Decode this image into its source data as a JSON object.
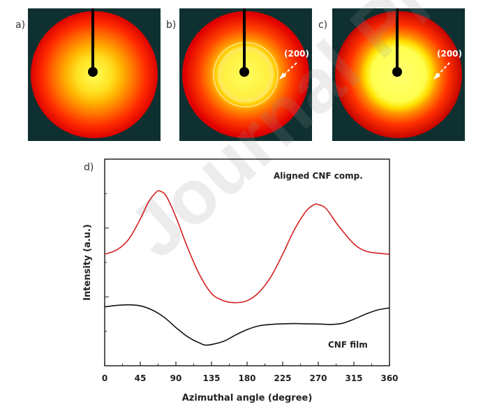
{
  "panels": {
    "a": {
      "label": "a)"
    },
    "b": {
      "label": "b)",
      "annotation": "(200)"
    },
    "c": {
      "label": "c)",
      "annotation": "(200)"
    },
    "d": {
      "label": "d)"
    }
  },
  "watermark": "Journal Pre-proof",
  "colors": {
    "aligned_curve": "#d42020",
    "film_curve": "#111111",
    "pattern_background": "#0f3030"
  },
  "chart_data": {
    "type": "line",
    "xlabel": "Azimuthal angle (degree)",
    "ylabel": "Intensity (a.u.)",
    "xlim": [
      0,
      360
    ],
    "x_ticks": [
      0,
      45,
      90,
      135,
      180,
      225,
      270,
      315,
      360
    ],
    "y_ticks_labeled": false,
    "grid": false,
    "series": [
      {
        "name": "Aligned CNF comp.",
        "color": "#d42020",
        "x": [
          0,
          15,
          30,
          45,
          55,
          65,
          70,
          78,
          90,
          105,
          120,
          135,
          150,
          165,
          180,
          195,
          210,
          225,
          240,
          255,
          265,
          270,
          280,
          295,
          315,
          330,
          345,
          360
        ],
        "y": [
          0.54,
          0.56,
          0.61,
          0.71,
          0.79,
          0.84,
          0.845,
          0.82,
          0.72,
          0.57,
          0.44,
          0.35,
          0.315,
          0.305,
          0.315,
          0.355,
          0.43,
          0.54,
          0.66,
          0.75,
          0.78,
          0.78,
          0.76,
          0.68,
          0.59,
          0.555,
          0.545,
          0.54
        ]
      },
      {
        "name": "CNF film",
        "color": "#111111",
        "x": [
          0,
          15,
          30,
          45,
          60,
          75,
          90,
          105,
          120,
          130,
          150,
          165,
          180,
          195,
          210,
          225,
          240,
          255,
          270,
          285,
          300,
          315,
          330,
          345,
          360
        ],
        "y": [
          0.285,
          0.292,
          0.295,
          0.29,
          0.27,
          0.235,
          0.185,
          0.14,
          0.11,
          0.1,
          0.118,
          0.148,
          0.175,
          0.193,
          0.2,
          0.203,
          0.204,
          0.203,
          0.202,
          0.2,
          0.205,
          0.225,
          0.25,
          0.27,
          0.28
        ]
      }
    ]
  }
}
